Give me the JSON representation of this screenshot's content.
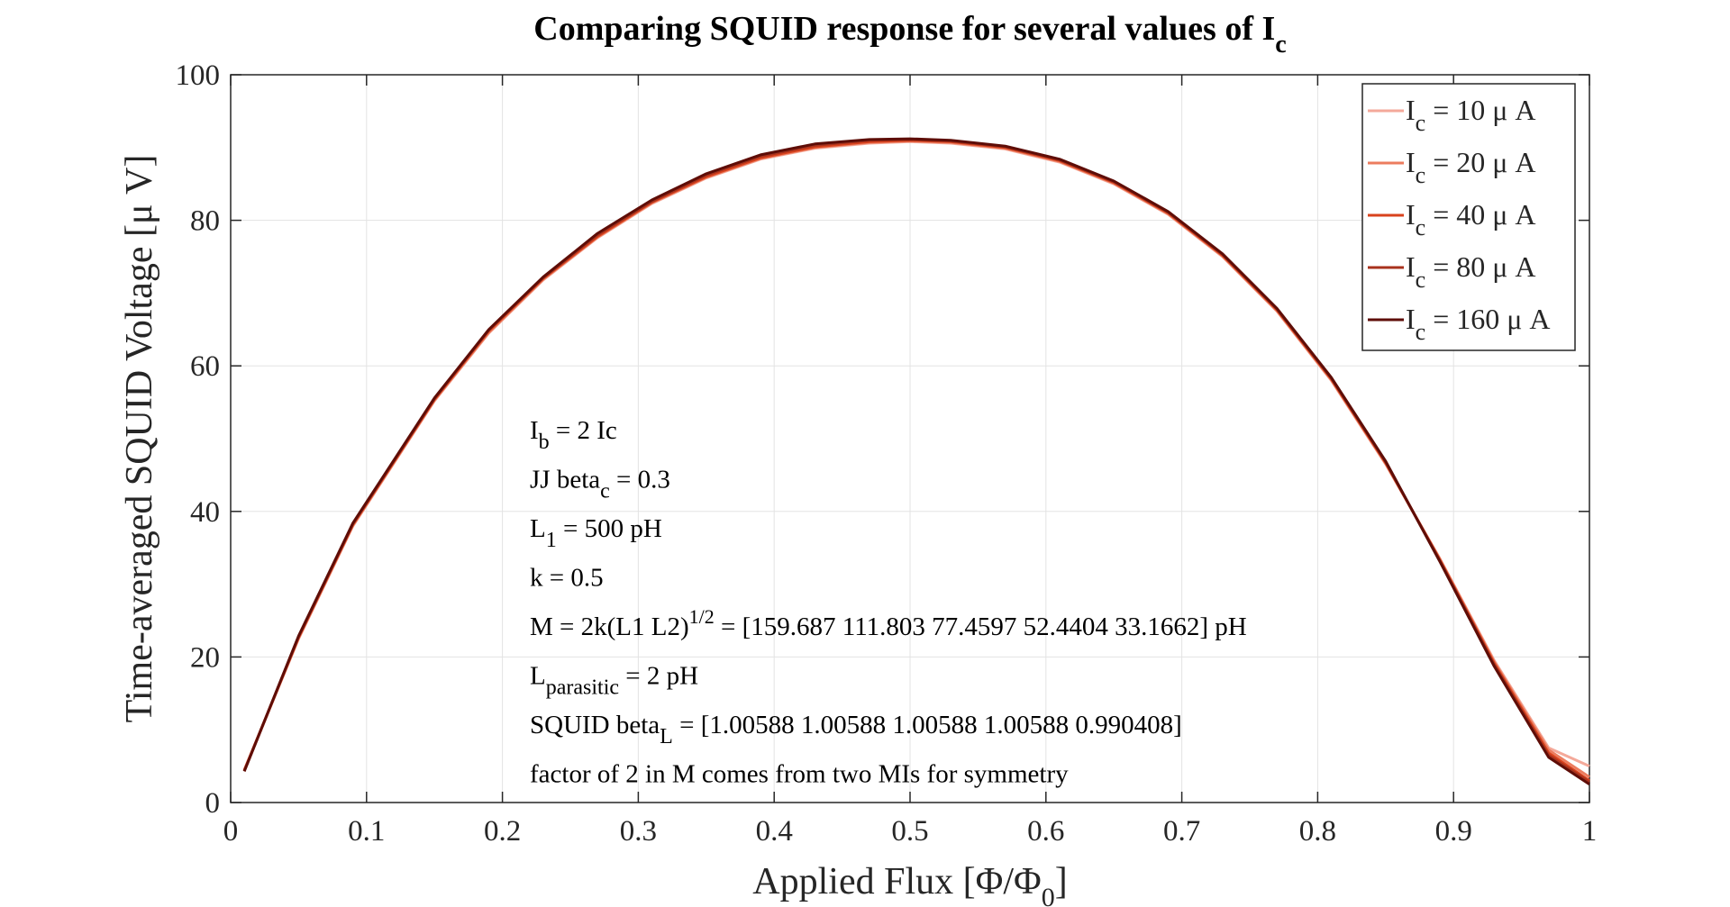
{
  "chart_data": {
    "type": "line",
    "title": "Comparing SQUID response for several values of I",
    "title_sub": "c",
    "xlabel": "Applied Flux [Φ/Φ",
    "xlabel_sub": "0",
    "xlabel_end": "]",
    "ylabel": "Time-averaged SQUID Voltage [μ V]",
    "xlim": [
      0,
      1
    ],
    "ylim": [
      0,
      100
    ],
    "xticks": [
      "0",
      "0.1",
      "0.2",
      "0.3",
      "0.4",
      "0.5",
      "0.6",
      "0.7",
      "0.8",
      "0.9",
      "1"
    ],
    "yticks": [
      "0",
      "20",
      "40",
      "60",
      "80",
      "100"
    ],
    "grid": true,
    "legend_position": "top-right",
    "x": [
      0.01,
      0.05,
      0.09,
      0.15,
      0.19,
      0.23,
      0.27,
      0.31,
      0.35,
      0.39,
      0.43,
      0.47,
      0.5,
      0.53,
      0.57,
      0.61,
      0.65,
      0.69,
      0.73,
      0.77,
      0.81,
      0.85,
      0.89,
      0.93,
      0.97,
      1.0
    ],
    "series": [
      {
        "name": "I = 10 μ A",
        "label_main": "I",
        "label_sub": "c",
        "label_rest": " = 10 μ A",
        "color": "#f4a99a",
        "values": [
          4.5,
          22.5,
          38,
          55.2,
          64.5,
          71.8,
          77.6,
          82.3,
          85.8,
          88.4,
          89.9,
          90.6,
          90.8,
          90.6,
          89.8,
          88.0,
          85.0,
          80.8,
          75.0,
          67.5,
          58.0,
          46.5,
          33.5,
          19.5,
          7.5,
          5.0
        ]
      },
      {
        "name": "I = 20 μ A",
        "label_main": "I",
        "label_sub": "c",
        "label_rest": " = 20 μ A",
        "color": "#ec7c5e",
        "values": [
          4.4,
          22.6,
          38.1,
          55.3,
          64.6,
          71.9,
          77.7,
          82.4,
          85.9,
          88.5,
          90.0,
          90.7,
          90.9,
          90.7,
          89.9,
          88.1,
          85.1,
          80.9,
          75.1,
          67.6,
          58.1,
          46.6,
          33.4,
          19.3,
          7.2,
          3.5
        ]
      },
      {
        "name": "I = 40 μ A",
        "label_main": "I",
        "label_sub": "c",
        "label_rest": " = 40 μ A",
        "color": "#d9421d",
        "values": [
          4.4,
          22.7,
          38.2,
          55.4,
          64.8,
          72.0,
          77.8,
          82.5,
          86.0,
          88.6,
          90.1,
          90.8,
          91.0,
          90.8,
          90.0,
          88.2,
          85.2,
          81.0,
          75.2,
          67.7,
          58.2,
          46.7,
          33.3,
          19.1,
          6.8,
          3.0
        ]
      },
      {
        "name": "I = 80 μ A",
        "label_main": "I",
        "label_sub": "c",
        "label_rest": " = 80 μ A",
        "color": "#a8321d",
        "values": [
          4.3,
          22.8,
          38.3,
          55.5,
          64.9,
          72.1,
          78.0,
          82.6,
          86.2,
          88.8,
          90.3,
          91.0,
          91.1,
          90.9,
          90.1,
          88.3,
          85.3,
          81.1,
          75.3,
          67.8,
          58.3,
          46.8,
          33.2,
          18.9,
          6.5,
          2.8
        ]
      },
      {
        "name": "I = 160 μ A",
        "label_main": "I",
        "label_sub": "c",
        "label_rest": " = 160 μ A",
        "color": "#5e0d07",
        "values": [
          4.3,
          22.9,
          38.4,
          55.6,
          65.0,
          72.2,
          78.2,
          82.8,
          86.4,
          89.0,
          90.5,
          91.1,
          91.2,
          91.0,
          90.2,
          88.4,
          85.4,
          81.2,
          75.4,
          67.9,
          58.4,
          46.9,
          33.1,
          18.7,
          6.2,
          2.5
        ]
      }
    ],
    "annotations": [
      {
        "main": "I",
        "sub": "b",
        "rest": " = 2 Ic"
      },
      {
        "main": "JJ beta",
        "sub": "c",
        "rest": " = 0.3"
      },
      {
        "main": "L",
        "sub": "1",
        "rest": " = 500 pH"
      },
      {
        "main": "k = 0.5",
        "sub": "",
        "rest": ""
      },
      {
        "main": "M = 2k(L1 L2)",
        "sup": "1/2",
        "rest": " = [159.687 111.803 77.4597 52.4404 33.1662] pH"
      },
      {
        "main": "L",
        "sub": "parasitic",
        "rest": " = 2 pH"
      },
      {
        "main": "SQUID beta",
        "sub": "L",
        "rest": " = [1.00588 1.00588 1.00588 1.00588 0.990408]"
      },
      {
        "main": "factor of 2 in M comes from two MIs for symmetry",
        "sub": "",
        "rest": ""
      }
    ]
  }
}
